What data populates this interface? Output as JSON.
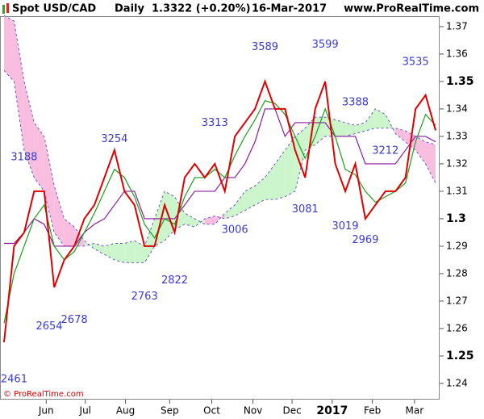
{
  "chart_data": {
    "type": "line",
    "title": "Spot USD/CAD",
    "interval": "Daily",
    "last": "1.3322 (+0.20%)",
    "date": "16-Mar-2017",
    "source": "www.ProRealTime.com",
    "copyright": "© ProRealTime.com",
    "xlim": [
      0,
      43
    ],
    "xticks": [
      {
        "value": 4.2,
        "label": "Jun"
      },
      {
        "value": 8.1,
        "label": "Jul"
      },
      {
        "value": 12.1,
        "label": "Aug"
      },
      {
        "value": 16.5,
        "label": "Sep"
      },
      {
        "value": 20.7,
        "label": "Oct"
      },
      {
        "value": 24.8,
        "label": "Nov"
      },
      {
        "value": 28.7,
        "label": "Dec"
      },
      {
        "value": 32.7,
        "label": "2017"
      },
      {
        "value": 36.7,
        "label": "Feb"
      },
      {
        "value": 40.9,
        "label": "Mar"
      }
    ],
    "ylim": [
      1.2341,
      1.3738
    ],
    "yticks": [
      1.24,
      1.25,
      1.26,
      1.27,
      1.28,
      1.29,
      1.3,
      1.31,
      1.32,
      1.33,
      1.34,
      1.35,
      1.36,
      1.37
    ],
    "cloud": {
      "bull_color": "#ccf5cc",
      "bear_color": "#f9bde0",
      "span_a": [
        1.354,
        1.35,
        1.325,
        1.315,
        1.31,
        1.295,
        1.29,
        1.29,
        1.29,
        1.291,
        1.29,
        1.291,
        1.291,
        1.292,
        1.29,
        1.3,
        1.31,
        1.308,
        1.302,
        1.3,
        1.298,
        1.298,
        1.302,
        1.305,
        1.31,
        1.312,
        1.315,
        1.32,
        1.325,
        1.33,
        1.333,
        1.337,
        1.337,
        1.336,
        1.335,
        1.334,
        1.335,
        1.34,
        1.338,
        1.331,
        1.328,
        1.325,
        1.32,
        1.313
      ],
      "span_b": [
        1.374,
        1.372,
        1.35,
        1.335,
        1.33,
        1.312,
        1.3,
        1.297,
        1.292,
        1.289,
        1.287,
        1.285,
        1.284,
        1.284,
        1.284,
        1.29,
        1.292,
        1.296,
        1.298,
        1.297,
        1.3,
        1.301,
        1.3,
        1.301,
        1.303,
        1.305,
        1.307,
        1.307,
        1.308,
        1.31,
        1.325,
        1.327,
        1.33,
        1.33,
        1.33,
        1.331,
        1.332,
        1.333,
        1.333,
        1.333,
        1.332,
        1.33,
        1.328,
        1.327
      ]
    },
    "series": [
      {
        "color": "#e00000",
        "values": [
          1.255,
          1.29,
          1.295,
          1.31,
          1.31,
          1.275,
          1.285,
          1.29,
          1.3,
          1.305,
          1.315,
          1.325,
          1.31,
          1.305,
          1.29,
          1.29,
          1.305,
          1.295,
          1.315,
          1.32,
          1.315,
          1.32,
          1.31,
          1.33,
          1.335,
          1.34,
          1.35,
          1.34,
          1.34,
          1.325,
          1.315,
          1.34,
          1.35,
          1.32,
          1.31,
          1.32,
          1.3,
          1.305,
          1.31,
          1.31,
          1.315,
          1.34,
          1.345,
          1.3322
        ]
      },
      {
        "color": "#1a9f1a",
        "values": [
          1.262,
          1.28,
          1.29,
          1.3,
          1.305,
          1.29,
          1.285,
          1.288,
          1.295,
          1.302,
          1.31,
          1.318,
          1.315,
          1.308,
          1.298,
          1.293,
          1.3,
          1.298,
          1.308,
          1.315,
          1.315,
          1.318,
          1.315,
          1.323,
          1.33,
          1.336,
          1.343,
          1.342,
          1.338,
          1.33,
          1.322,
          1.33,
          1.34,
          1.33,
          1.318,
          1.316,
          1.31,
          1.306,
          1.308,
          1.31,
          1.313,
          1.328,
          1.338,
          1.334
        ]
      },
      {
        "color": "#8b1a9f",
        "values": [
          1.291,
          1.291,
          1.295,
          1.3,
          1.298,
          1.29,
          1.29,
          1.29,
          1.295,
          1.298,
          1.3,
          1.305,
          1.31,
          1.31,
          1.3,
          1.3,
          1.3,
          1.3,
          1.305,
          1.31,
          1.31,
          1.31,
          1.315,
          1.315,
          1.32,
          1.328,
          1.34,
          1.34,
          1.33,
          1.335,
          1.335,
          1.335,
          1.335,
          1.33,
          1.33,
          1.33,
          1.32,
          1.32,
          1.32,
          1.32,
          1.325,
          1.33,
          1.33,
          1.328
        ]
      }
    ],
    "annotations": [
      {
        "label": "2461",
        "x": 1,
        "y": 1.2461
      },
      {
        "label": "2654",
        "x": 4.5,
        "y": 1.2654
      },
      {
        "label": "2678",
        "x": 7,
        "y": 1.2678
      },
      {
        "label": "3188",
        "x": 2,
        "y": 1.3188
      },
      {
        "label": "3254",
        "x": 11,
        "y": 1.3254
      },
      {
        "label": "2763",
        "x": 14,
        "y": 1.2763
      },
      {
        "label": "2822",
        "x": 17,
        "y": 1.2822
      },
      {
        "label": "3313",
        "x": 21,
        "y": 1.3313
      },
      {
        "label": "3006",
        "x": 23,
        "y": 1.3006
      },
      {
        "label": "3589",
        "x": 26,
        "y": 1.3589
      },
      {
        "label": "3081",
        "x": 30,
        "y": 1.3081
      },
      {
        "label": "3599",
        "x": 32,
        "y": 1.3599
      },
      {
        "label": "3388",
        "x": 35,
        "y": 1.3388
      },
      {
        "label": "3019",
        "x": 34,
        "y": 1.3019
      },
      {
        "label": "2969",
        "x": 36,
        "y": 1.2969
      },
      {
        "label": "3212",
        "x": 38,
        "y": 1.3212
      },
      {
        "label": "3535",
        "x": 41,
        "y": 1.3535
      }
    ]
  }
}
